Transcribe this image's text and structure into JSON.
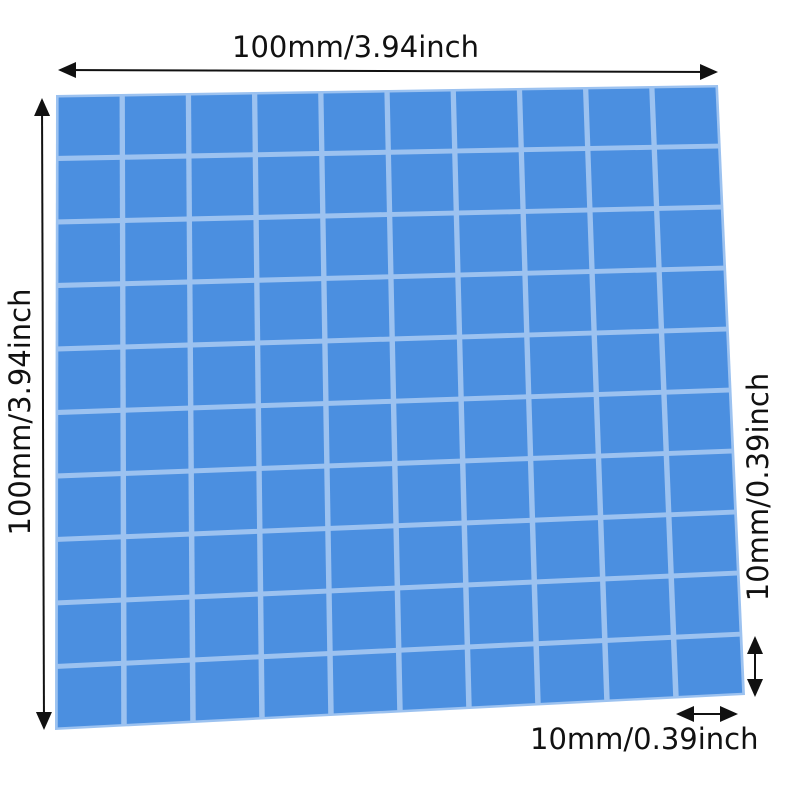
{
  "labels": {
    "top": "100mm/3.94inch",
    "left": "100mm/3.94inch",
    "right": "10mm/0.39inch",
    "bottom": "10mm/0.39inch"
  },
  "grid": {
    "rows": 10,
    "cols": 10
  },
  "colors": {
    "pad": "#4b8fe0",
    "gap": "#9cc2f0",
    "text": "#111111"
  }
}
